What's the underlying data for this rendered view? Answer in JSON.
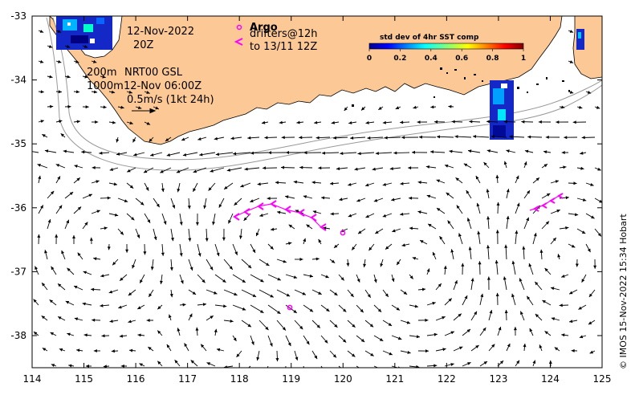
{
  "map": {
    "date_line1": "12-Nov-2022",
    "date_line2": "20Z",
    "depth_line1": "200m",
    "depth_line2": "1000m",
    "product": "NRT00 GSL",
    "product_time": "12-Nov 06:00Z",
    "scale_label": "0.5m/s (1kt 24h)",
    "legend_argo": "Argo",
    "legend_drifters": "drifters@12h",
    "legend_drifters_to": "to 13/11 12Z",
    "colorbar_title": "std dev of 4hr SST comp",
    "colorbar_ticks": [
      "0",
      "0.2",
      "0.4",
      "0.6",
      "0.8",
      "1"
    ],
    "x_ticks": [
      "114",
      "115",
      "116",
      "117",
      "118",
      "119",
      "120",
      "121",
      "122",
      "123",
      "124",
      "125"
    ],
    "y_ticks": [
      "-33",
      "-34",
      "-35",
      "-36",
      "-37",
      "-38"
    ],
    "credit": "© IMOS 15-Nov-2022 15:34 Hobart",
    "colors": {
      "land": "#fcc896",
      "argo": "#ff00ff",
      "drifter": "#ff00ff",
      "isobath": "#999999"
    },
    "icons": [
      "argo-circle-icon",
      "drifter-arrow-icon",
      "velocity-arrow-icon"
    ]
  }
}
